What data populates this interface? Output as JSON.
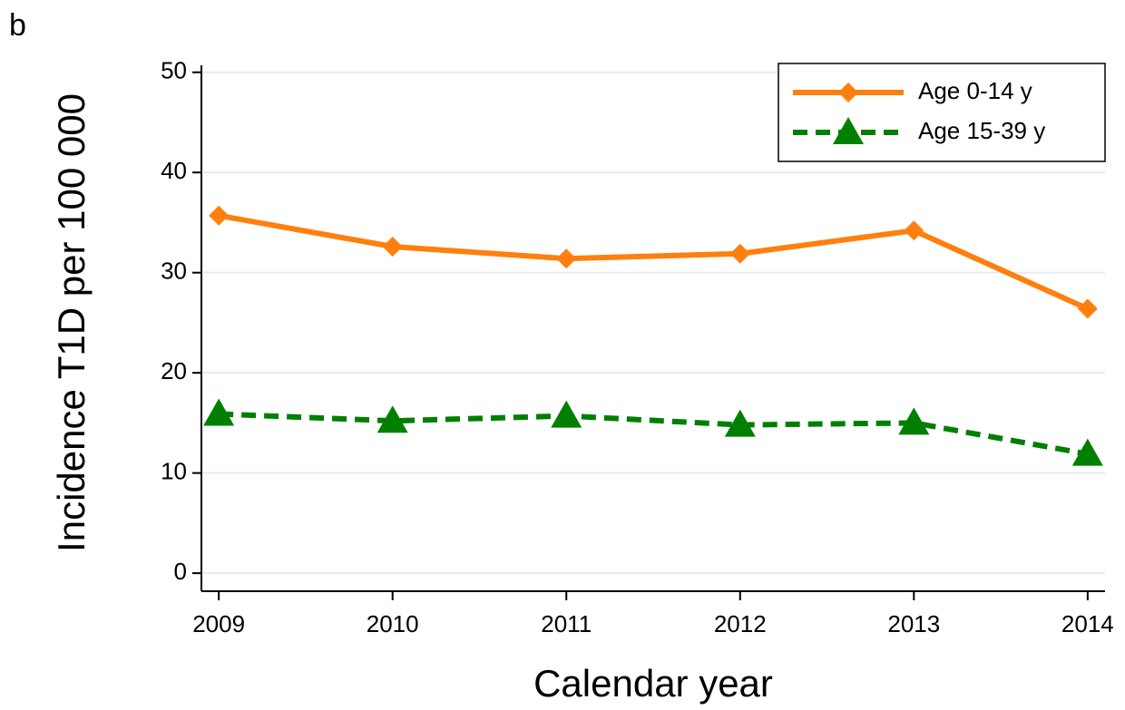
{
  "chart_data": {
    "type": "line",
    "panel_label": "b",
    "x_label": "Calendar year",
    "y_label": "Incidence T1D per 100 000",
    "x": [
      2009,
      2010,
      2011,
      2012,
      2013,
      2014
    ],
    "series": [
      {
        "name": "Age 0-14 y",
        "color": "#ff7f0e",
        "marker": "diamond",
        "dash": false,
        "values": [
          35.7,
          32.6,
          31.4,
          31.9,
          34.2,
          26.4
        ]
      },
      {
        "name": "Age 15-39 y",
        "color": "#007f00",
        "marker": "triangle",
        "dash": true,
        "values": [
          15.9,
          15.2,
          15.7,
          14.8,
          15.0,
          11.9
        ]
      }
    ],
    "xlim": [
      2008.9,
      2014.1
    ],
    "xticks": [
      2009,
      2010,
      2011,
      2012,
      2013,
      2014
    ],
    "ylim": [
      -1.8,
      50.7
    ],
    "yticks": [
      0,
      10,
      20,
      30,
      40,
      50
    ],
    "grid": true,
    "legend": "upper right"
  }
}
